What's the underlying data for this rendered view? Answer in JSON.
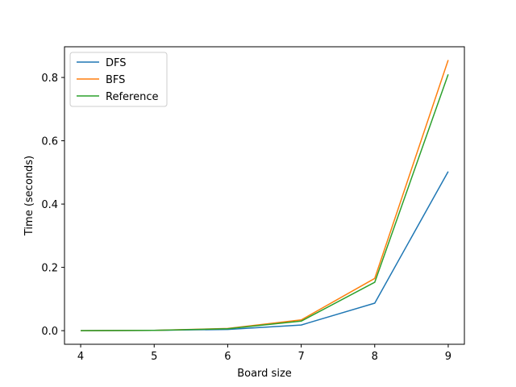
{
  "chart_data": {
    "type": "line",
    "title": "",
    "xlabel": "Board size",
    "ylabel": "Time (seconds)",
    "x": [
      4,
      5,
      6,
      7,
      8,
      9
    ],
    "xlim": [
      3.78,
      9.22
    ],
    "ylim": [
      -0.043,
      0.897
    ],
    "xticks": [
      4,
      5,
      6,
      7,
      8,
      9
    ],
    "yticks": [
      0.0,
      0.2,
      0.4,
      0.6,
      0.8
    ],
    "ytick_labels": [
      "0.0",
      "0.2",
      "0.4",
      "0.6",
      "0.8"
    ],
    "grid": false,
    "legend_position": "top-left",
    "series": [
      {
        "name": "DFS",
        "color": "#1f77b4",
        "values": [
          0.0,
          0.001,
          0.004,
          0.018,
          0.087,
          0.503
        ]
      },
      {
        "name": "BFS",
        "color": "#ff7f0e",
        "values": [
          0.0,
          0.001,
          0.007,
          0.034,
          0.165,
          0.855
        ]
      },
      {
        "name": "Reference",
        "color": "#2ca02c",
        "values": [
          0.0,
          0.001,
          0.006,
          0.03,
          0.153,
          0.81
        ]
      }
    ]
  }
}
